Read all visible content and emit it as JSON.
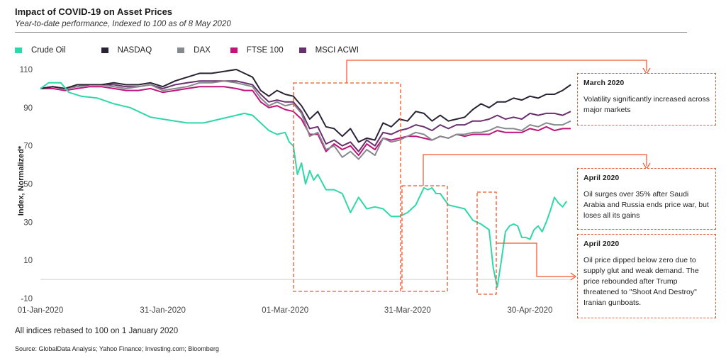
{
  "header": {
    "title": "Impact of COVID-19 on Asset Prices",
    "subtitle": "Year-to-date performance, Indexed to 100 as of 8 May 2020"
  },
  "legend": [
    {
      "name": "Crude Oil",
      "color": "#2fd8a8"
    },
    {
      "name": "NASDAQ",
      "color": "#2a2334"
    },
    {
      "name": "DAX",
      "color": "#858a8e"
    },
    {
      "name": "FTSE 100",
      "color": "#c2137b"
    },
    {
      "name": "MSCI ACWI",
      "color": "#6a2f6e"
    }
  ],
  "callouts": [
    {
      "title": "March 2020",
      "text": "Volatility significantly increased across major markets"
    },
    {
      "title": "April 2020",
      "text": "Oil surges over 35%  after Saudi Arabia and Russia ends price war, but loses all its gains"
    },
    {
      "title": "April 2020",
      "text": "Oil price dipped below zero due to supply glut and weak demand. The price rebounded after Trump threatened to \"Shoot And Destroy\" Iranian gunboats."
    }
  ],
  "footer": {
    "note": "All indices rebased to 100 on 1 January  2020",
    "source": "Source: GlobalData Analysis; Yahoo Finance; Investing.com; Bloomberg"
  },
  "accent_color": "#f0552e",
  "chart_data": {
    "type": "line",
    "ylabel": "Index, Normalized*",
    "ylim": [
      -10,
      110
    ],
    "yticks": [
      110,
      90,
      70,
      50,
      30,
      10,
      -10
    ],
    "xlim": [
      0,
      130
    ],
    "xticks": [
      {
        "x": 0,
        "label": "01-Jan-2020"
      },
      {
        "x": 30,
        "label": "31-Jan-2020"
      },
      {
        "x": 60,
        "label": "01-Mar-2020"
      },
      {
        "x": 90,
        "label": "31-Mar-2020"
      },
      {
        "x": 120,
        "label": "30-Apr-2020"
      }
    ],
    "series": [
      {
        "name": "Crude Oil",
        "color": "#2fd8a8",
        "x": [
          0,
          2,
          5,
          7,
          10,
          14,
          18,
          22,
          24,
          27,
          30,
          33,
          36,
          40,
          44,
          48,
          50,
          52,
          54,
          56,
          58,
          60,
          61,
          62,
          63,
          64,
          65,
          66,
          67,
          68,
          70,
          72,
          74,
          76,
          78,
          80,
          82,
          84,
          86,
          88,
          90,
          92,
          94,
          95,
          96,
          97,
          98,
          100,
          102,
          104,
          106,
          108,
          110,
          111,
          112,
          113,
          114,
          115,
          116,
          117,
          118,
          119,
          120,
          121,
          122,
          123,
          124,
          125,
          126,
          127,
          128,
          129
        ],
        "y": [
          100,
          103,
          103,
          98,
          96,
          95,
          92,
          90,
          88,
          85,
          84,
          83,
          82,
          82,
          84,
          86,
          87,
          86,
          82,
          78,
          76,
          77,
          72,
          70,
          55,
          61,
          50,
          57,
          52,
          55,
          47,
          47,
          45,
          35,
          43,
          37,
          38,
          37,
          33,
          33,
          35,
          39,
          48,
          47,
          48,
          45,
          45,
          39,
          38,
          37,
          31,
          29,
          26,
          6,
          -4,
          10,
          25,
          28,
          29,
          28,
          22,
          22,
          21,
          26,
          28,
          25,
          30,
          36,
          43,
          40,
          38,
          41
        ]
      },
      {
        "name": "NASDAQ",
        "color": "#2a2334",
        "x": [
          0,
          3,
          6,
          9,
          12,
          15,
          18,
          21,
          24,
          27,
          30,
          33,
          36,
          39,
          42,
          45,
          48,
          50,
          52,
          54,
          56,
          58,
          60,
          62,
          64,
          66,
          68,
          70,
          72,
          74,
          76,
          78,
          80,
          82,
          84,
          86,
          88,
          90,
          92,
          94,
          96,
          98,
          100,
          102,
          104,
          106,
          108,
          110,
          112,
          114,
          116,
          118,
          120,
          122,
          124,
          126,
          128,
          130
        ],
        "y": [
          100,
          101,
          100,
          102,
          102,
          102,
          103,
          102,
          102,
          103,
          101,
          104,
          106,
          108,
          108,
          109,
          110,
          108,
          106,
          99,
          96,
          99,
          97,
          96,
          91,
          84,
          88,
          80,
          79,
          75,
          79,
          72,
          74,
          73,
          82,
          80,
          84,
          83,
          88,
          87,
          83,
          86,
          83,
          84,
          85,
          89,
          92,
          90,
          93,
          93,
          95,
          94,
          96,
          95,
          97,
          97,
          99,
          102
        ]
      },
      {
        "name": "DAX",
        "color": "#858a8e",
        "x": [
          0,
          3,
          6,
          9,
          12,
          15,
          18,
          21,
          24,
          27,
          30,
          33,
          36,
          39,
          42,
          45,
          48,
          50,
          52,
          54,
          56,
          58,
          60,
          62,
          64,
          66,
          68,
          70,
          72,
          74,
          76,
          78,
          80,
          82,
          84,
          86,
          88,
          90,
          92,
          94,
          96,
          98,
          100,
          102,
          104,
          106,
          108,
          110,
          112,
          114,
          116,
          118,
          120,
          122,
          124,
          126,
          128,
          130
        ],
        "y": [
          100,
          101,
          100,
          101,
          102,
          102,
          101,
          100,
          101,
          102,
          99,
          100,
          101,
          103,
          103,
          104,
          103,
          102,
          101,
          95,
          91,
          93,
          91,
          92,
          87,
          75,
          77,
          68,
          70,
          64,
          67,
          63,
          68,
          65,
          74,
          72,
          73,
          75,
          77,
          76,
          73,
          75,
          74,
          76,
          76,
          77,
          77,
          78,
          80,
          79,
          79,
          78,
          81,
          80,
          82,
          81,
          81,
          83
        ]
      },
      {
        "name": "FTSE 100",
        "color": "#c2137b",
        "x": [
          0,
          3,
          6,
          9,
          12,
          15,
          18,
          21,
          24,
          27,
          30,
          33,
          36,
          39,
          42,
          45,
          48,
          50,
          52,
          54,
          56,
          58,
          60,
          62,
          64,
          66,
          68,
          70,
          72,
          74,
          76,
          78,
          80,
          82,
          84,
          86,
          88,
          90,
          92,
          94,
          96,
          98,
          100,
          102,
          104,
          106,
          108,
          110,
          112,
          114,
          116,
          118,
          120,
          122,
          124,
          126,
          128,
          130
        ],
        "y": [
          100,
          100,
          99,
          100,
          101,
          101,
          100,
          99,
          99,
          100,
          98,
          99,
          100,
          101,
          101,
          101,
          100,
          99,
          99,
          93,
          90,
          91,
          89,
          88,
          84,
          76,
          76,
          67,
          71,
          68,
          70,
          65,
          71,
          68,
          74,
          73,
          74,
          75,
          75,
          74,
          73,
          75,
          74,
          76,
          75,
          76,
          76,
          76,
          78,
          77,
          77,
          77,
          79,
          78,
          80,
          78,
          79,
          79
        ]
      },
      {
        "name": "MSCI ACWI",
        "color": "#6a2f6e",
        "x": [
          0,
          3,
          6,
          9,
          12,
          15,
          18,
          21,
          24,
          27,
          30,
          33,
          36,
          39,
          42,
          45,
          48,
          50,
          52,
          54,
          56,
          58,
          60,
          62,
          64,
          66,
          68,
          70,
          72,
          74,
          76,
          78,
          80,
          82,
          84,
          86,
          88,
          90,
          92,
          94,
          96,
          98,
          100,
          102,
          104,
          106,
          108,
          110,
          112,
          114,
          116,
          118,
          120,
          122,
          124,
          126,
          128,
          130
        ],
        "y": [
          100,
          101,
          100,
          101,
          102,
          102,
          102,
          101,
          101,
          102,
          100,
          102,
          103,
          104,
          104,
          104,
          104,
          103,
          102,
          97,
          93,
          94,
          93,
          93,
          88,
          79,
          80,
          71,
          73,
          70,
          72,
          67,
          73,
          70,
          77,
          76,
          78,
          79,
          81,
          80,
          78,
          81,
          79,
          81,
          81,
          83,
          83,
          84,
          86,
          84,
          85,
          84,
          87,
          86,
          87,
          87,
          86,
          88
        ]
      }
    ]
  }
}
